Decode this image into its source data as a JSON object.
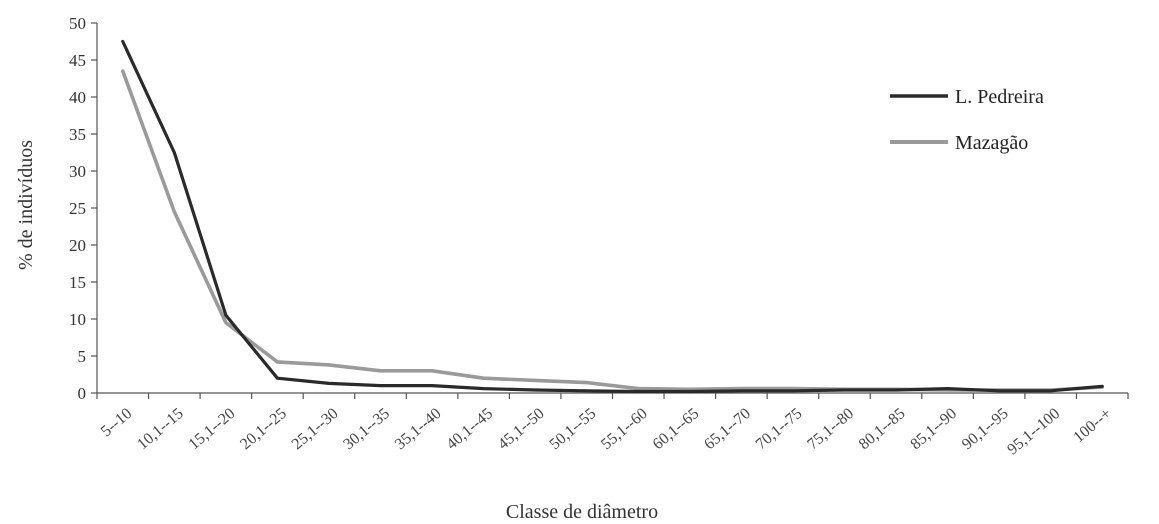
{
  "chart_data": {
    "type": "line",
    "title": "",
    "xlabel": "Classe de diâmetro",
    "ylabel": "% de indivíduos",
    "ylim": [
      0,
      50
    ],
    "yticks": [
      0,
      5,
      10,
      15,
      20,
      25,
      30,
      35,
      40,
      45,
      50
    ],
    "grid": false,
    "legend": "top-right",
    "categories": [
      "5--10",
      "10,1--15",
      "15,1--20",
      "20,1--25",
      "25,1--30",
      "30,1--35",
      "35,1--40",
      "40,1--45",
      "45,1--50",
      "50,1--55",
      "55,1--60",
      "60,1--65",
      "65,1--70",
      "70,1--75",
      "75,1--80",
      "80,1--85",
      "85,1--90",
      "90,1--95",
      "95,1--100",
      "100--+"
    ],
    "series": [
      {
        "name": "L. Pedreira",
        "color": "#2a2a2a",
        "values": [
          47.5,
          32.5,
          10.5,
          2,
          1.3,
          1,
          1,
          0.6,
          0.4,
          0.3,
          0.2,
          0.2,
          0.3,
          0.3,
          0.4,
          0.4,
          0.6,
          0.3,
          0.3,
          0.9
        ]
      },
      {
        "name": "Mazagão",
        "color": "#9a9a9a",
        "values": [
          43.5,
          24.5,
          9.5,
          4.2,
          3.8,
          3,
          3,
          2,
          1.7,
          1.4,
          0.6,
          0.5,
          0.6,
          0.6,
          0.5,
          0.5,
          0.4,
          0.4,
          0.4,
          0.8
        ]
      }
    ]
  }
}
